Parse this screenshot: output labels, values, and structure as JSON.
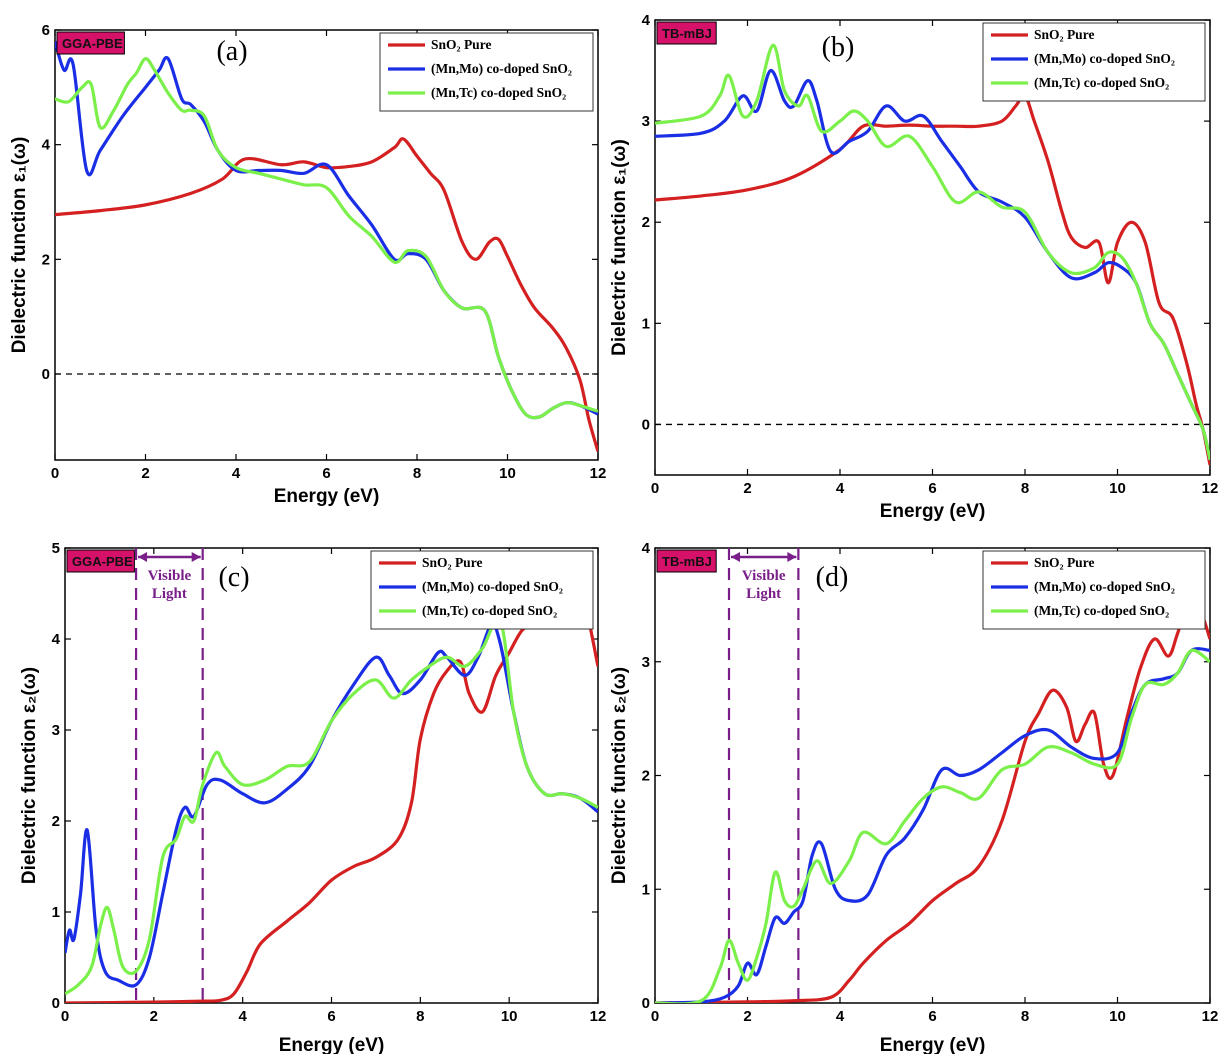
{
  "colors": {
    "pure": "#d42020",
    "mnmo": "#1a2ee6",
    "mntc": "#7cf04a",
    "method_tag": "#d6116a",
    "visible": "#7a1f8a"
  },
  "chart_data": [
    {
      "id": "a",
      "type": "line",
      "panel_label": "(a)",
      "method": "GGA-PBE",
      "xlabel": "Energy (eV)",
      "ylabel": "Dielectric function ε₁(ω)",
      "xlim": [
        0,
        12
      ],
      "ylim": [
        -1.5,
        6
      ],
      "xticks": [
        0,
        2,
        4,
        6,
        8,
        10,
        12
      ],
      "yticks": [
        0,
        2,
        4,
        6
      ],
      "zero_line": true,
      "legend": {
        "position": "top-right",
        "entries": [
          "SnO₂ Pure",
          "(Mn,Mo) co-doped SnO₂",
          "(Mn,Tc) co-doped SnO₂"
        ]
      },
      "series": [
        {
          "name": "SnO₂ Pure",
          "color_key": "pure",
          "x": [
            0,
            1,
            2,
            3,
            3.7,
            4.2,
            5,
            5.5,
            6,
            6.5,
            7,
            7.5,
            7.7,
            8,
            8.3,
            8.6,
            9,
            9.3,
            9.6,
            9.8,
            10,
            10.3,
            10.6,
            11,
            11.3,
            11.6,
            11.8,
            12
          ],
          "y": [
            2.78,
            2.85,
            2.95,
            3.15,
            3.4,
            3.75,
            3.65,
            3.7,
            3.6,
            3.62,
            3.7,
            3.95,
            4.1,
            3.8,
            3.5,
            3.2,
            2.3,
            2.0,
            2.3,
            2.35,
            2.05,
            1.55,
            1.15,
            0.8,
            0.45,
            -0.1,
            -0.8,
            -1.35
          ]
        },
        {
          "name": "(Mn,Mo) co-doped SnO₂",
          "color_key": "mnmo",
          "x": [
            0,
            0.2,
            0.4,
            0.7,
            1,
            1.5,
            2,
            2.3,
            2.5,
            2.8,
            3,
            3.3,
            3.6,
            4,
            4.5,
            5,
            5.5,
            6,
            6.5,
            7,
            7.5,
            7.8,
            8.2,
            8.6,
            9,
            9.5,
            9.8,
            10.1,
            10.4,
            10.7,
            11,
            11.3,
            11.6,
            12
          ],
          "y": [
            5.8,
            5.3,
            5.4,
            3.55,
            3.9,
            4.5,
            5.0,
            5.3,
            5.5,
            4.8,
            4.7,
            4.4,
            3.9,
            3.55,
            3.55,
            3.55,
            3.5,
            3.65,
            3.1,
            2.6,
            2.0,
            2.1,
            2.0,
            1.45,
            1.15,
            1.1,
            0.3,
            -0.3,
            -0.7,
            -0.75,
            -0.6,
            -0.5,
            -0.55,
            -0.7
          ]
        },
        {
          "name": "(Mn,Tc) co-doped SnO₂",
          "color_key": "mntc",
          "x": [
            0,
            0.3,
            0.6,
            0.8,
            1,
            1.3,
            1.6,
            1.8,
            2,
            2.2,
            2.5,
            2.8,
            3,
            3.3,
            3.6,
            4,
            4.5,
            5,
            5.5,
            6,
            6.5,
            7,
            7.5,
            7.8,
            8.2,
            8.6,
            9,
            9.5,
            9.8,
            10.1,
            10.4,
            10.7,
            11,
            11.3,
            11.6,
            12
          ],
          "y": [
            4.8,
            4.75,
            5.0,
            5.05,
            4.3,
            4.6,
            5.05,
            5.25,
            5.5,
            5.3,
            4.9,
            4.6,
            4.6,
            4.5,
            3.9,
            3.6,
            3.5,
            3.4,
            3.3,
            3.25,
            2.75,
            2.4,
            1.95,
            2.15,
            2.05,
            1.45,
            1.15,
            1.1,
            0.3,
            -0.3,
            -0.7,
            -0.75,
            -0.6,
            -0.5,
            -0.55,
            -0.65
          ]
        }
      ]
    },
    {
      "id": "b",
      "type": "line",
      "panel_label": "(b)",
      "method": "TB-mBJ",
      "xlabel": "Energy (eV)",
      "ylabel": "Dielectric function ε₁(ω)",
      "xlim": [
        0,
        12
      ],
      "ylim": [
        -0.5,
        4
      ],
      "xticks": [
        0,
        2,
        4,
        6,
        8,
        10,
        12
      ],
      "yticks": [
        0,
        1,
        2,
        3,
        4
      ],
      "zero_line": true,
      "legend": {
        "position": "top-right",
        "entries": [
          "SnO₂ Pure",
          "(Mn,Mo) co-doped SnO₂",
          "(Mn,Tc) co-doped SnO₂"
        ]
      },
      "series": [
        {
          "name": "SnO₂ Pure",
          "color_key": "pure",
          "x": [
            0,
            1,
            2,
            3,
            4,
            4.5,
            5,
            5.5,
            6,
            6.5,
            7,
            7.5,
            7.8,
            8,
            8.2,
            8.5,
            8.8,
            9,
            9.3,
            9.6,
            9.8,
            10,
            10.3,
            10.6,
            10.9,
            11.2,
            11.5,
            11.7,
            11.85,
            12
          ],
          "y": [
            2.22,
            2.26,
            2.32,
            2.45,
            2.72,
            2.95,
            2.95,
            2.96,
            2.95,
            2.95,
            2.95,
            3.0,
            3.15,
            3.25,
            3.0,
            2.6,
            2.1,
            1.85,
            1.75,
            1.8,
            1.4,
            1.8,
            2.0,
            1.8,
            1.2,
            1.05,
            0.6,
            0.2,
            -0.05,
            -0.4
          ]
        },
        {
          "name": "(Mn,Mo) co-doped SnO₂",
          "color_key": "mnmo",
          "x": [
            0,
            1,
            1.5,
            1.9,
            2.2,
            2.5,
            2.8,
            3,
            3.3,
            3.5,
            3.8,
            4.2,
            4.6,
            5,
            5.4,
            5.8,
            6.2,
            6.6,
            7,
            7.5,
            8,
            8.5,
            9,
            9.5,
            9.8,
            10.1,
            10.4,
            10.7,
            11,
            11.3,
            11.6,
            11.85,
            12
          ],
          "y": [
            2.85,
            2.88,
            3.0,
            3.25,
            3.1,
            3.5,
            3.2,
            3.15,
            3.4,
            3.2,
            2.7,
            2.8,
            2.9,
            3.15,
            3.0,
            3.05,
            2.8,
            2.55,
            2.3,
            2.2,
            2.05,
            1.7,
            1.45,
            1.5,
            1.6,
            1.55,
            1.4,
            1.0,
            0.8,
            0.5,
            0.2,
            -0.05,
            -0.35
          ]
        },
        {
          "name": "(Mn,Tc) co-doped SnO₂",
          "color_key": "mntc",
          "x": [
            0,
            1,
            1.4,
            1.6,
            1.9,
            2.2,
            2.55,
            2.8,
            3.1,
            3.3,
            3.6,
            4,
            4.3,
            4.6,
            5,
            5.5,
            6,
            6.5,
            7,
            7.5,
            8,
            8.5,
            9,
            9.5,
            9.8,
            10.1,
            10.4,
            10.7,
            11,
            11.3,
            11.6,
            11.85,
            12
          ],
          "y": [
            2.98,
            3.05,
            3.25,
            3.45,
            3.05,
            3.2,
            3.75,
            3.3,
            3.15,
            3.25,
            2.9,
            3.0,
            3.1,
            3.0,
            2.75,
            2.85,
            2.55,
            2.2,
            2.3,
            2.15,
            2.1,
            1.7,
            1.5,
            1.55,
            1.7,
            1.65,
            1.4,
            1.0,
            0.8,
            0.5,
            0.2,
            -0.05,
            -0.35
          ]
        }
      ]
    },
    {
      "id": "c",
      "type": "line",
      "panel_label": "(c)",
      "method": "GGA-PBE",
      "xlabel": "Energy (eV)",
      "ylabel": "Dielectric function ε₂(ω)",
      "xlim": [
        0,
        12
      ],
      "ylim": [
        0,
        5
      ],
      "xticks": [
        0,
        2,
        4,
        6,
        8,
        10,
        12
      ],
      "yticks": [
        0,
        1,
        2,
        3,
        4,
        5
      ],
      "visible_band": {
        "from": 1.6,
        "to": 3.1,
        "label_line1": "Visible",
        "label_line2": "Light"
      },
      "legend": {
        "position": "top-right",
        "entries": [
          "SnO₂ Pure",
          "(Mn,Mo) co-doped SnO₂",
          "(Mn,Tc) co-doped SnO₂"
        ]
      },
      "series": [
        {
          "name": "SnO₂ Pure",
          "color_key": "pure",
          "x": [
            0,
            2,
            3,
            3.5,
            3.8,
            4.1,
            4.4,
            5,
            5.5,
            6,
            6.5,
            7,
            7.5,
            7.8,
            8,
            8.3,
            8.6,
            8.9,
            9.1,
            9.4,
            9.7,
            10,
            10.3,
            10.6,
            11,
            11.3,
            11.5,
            11.7,
            12
          ],
          "y": [
            0,
            0.01,
            0.02,
            0.03,
            0.1,
            0.35,
            0.65,
            0.9,
            1.1,
            1.35,
            1.5,
            1.6,
            1.8,
            2.2,
            2.9,
            3.4,
            3.65,
            3.75,
            3.4,
            3.2,
            3.6,
            3.85,
            4.1,
            4.15,
            4.15,
            4.35,
            4.55,
            4.4,
            3.7
          ]
        },
        {
          "name": "(Mn,Mo) co-doped SnO₂",
          "color_key": "mnmo",
          "x": [
            0,
            0.1,
            0.2,
            0.35,
            0.5,
            0.7,
            0.9,
            1.2,
            1.6,
            1.9,
            2.2,
            2.5,
            2.7,
            2.9,
            3.2,
            3.5,
            4,
            4.5,
            5,
            5.5,
            6,
            6.5,
            7,
            7.3,
            7.6,
            8,
            8.4,
            8.6,
            9,
            9.3,
            9.6,
            9.8,
            10.1,
            10.4,
            10.8,
            11.2,
            11.6,
            12
          ],
          "y": [
            0.55,
            0.8,
            0.7,
            1.2,
            1.9,
            0.8,
            0.35,
            0.25,
            0.2,
            0.5,
            1.2,
            1.9,
            2.15,
            2.05,
            2.4,
            2.45,
            2.3,
            2.2,
            2.35,
            2.6,
            3.1,
            3.5,
            3.8,
            3.6,
            3.4,
            3.55,
            3.85,
            3.8,
            3.6,
            3.8,
            4.15,
            3.95,
            3.2,
            2.6,
            2.3,
            2.3,
            2.25,
            2.1
          ]
        },
        {
          "name": "(Mn,Tc) co-doped SnO₂",
          "color_key": "mntc",
          "x": [
            0,
            0.3,
            0.6,
            0.8,
            0.95,
            1.1,
            1.3,
            1.6,
            1.9,
            2.2,
            2.5,
            2.7,
            2.9,
            3.1,
            3.4,
            3.6,
            4,
            4.5,
            5,
            5.5,
            6,
            6.5,
            7,
            7.4,
            7.8,
            8.2,
            8.6,
            9,
            9.4,
            9.8,
            10.1,
            10.4,
            10.8,
            11.2,
            11.6,
            12
          ],
          "y": [
            0.1,
            0.2,
            0.4,
            0.85,
            1.05,
            0.8,
            0.4,
            0.35,
            0.7,
            1.6,
            1.8,
            2.05,
            2.0,
            2.4,
            2.75,
            2.6,
            2.4,
            2.45,
            2.6,
            2.65,
            3.1,
            3.4,
            3.55,
            3.35,
            3.55,
            3.7,
            3.8,
            3.7,
            3.9,
            4.2,
            3.2,
            2.6,
            2.3,
            2.3,
            2.25,
            2.15
          ]
        }
      ]
    },
    {
      "id": "d",
      "type": "line",
      "panel_label": "(d)",
      "method": "TB-mBJ",
      "xlabel": "Energy (eV)",
      "ylabel": "Dielectric function ε₂(ω)",
      "xlim": [
        0,
        12
      ],
      "ylim": [
        0,
        4
      ],
      "xticks": [
        0,
        2,
        4,
        6,
        8,
        10,
        12
      ],
      "yticks": [
        0,
        1,
        2,
        3,
        4
      ],
      "visible_band": {
        "from": 1.6,
        "to": 3.1,
        "label_line1": "Visible",
        "label_line2": "Light"
      },
      "legend": {
        "position": "top-right",
        "entries": [
          "SnO₂ Pure",
          "(Mn,Mo) co-doped SnO₂",
          "(Mn,Tc) co-doped SnO₂"
        ]
      },
      "series": [
        {
          "name": "SnO₂ Pure",
          "color_key": "pure",
          "x": [
            0,
            2,
            3,
            3.8,
            4.2,
            4.5,
            5,
            5.5,
            6,
            6.5,
            7,
            7.5,
            8,
            8.3,
            8.6,
            8.9,
            9.1,
            9.3,
            9.5,
            9.7,
            9.9,
            10.2,
            10.5,
            10.8,
            11.1,
            11.3,
            11.6,
            11.8,
            12
          ],
          "y": [
            0,
            0.01,
            0.02,
            0.05,
            0.2,
            0.35,
            0.55,
            0.7,
            0.9,
            1.05,
            1.2,
            1.6,
            2.3,
            2.55,
            2.75,
            2.6,
            2.3,
            2.45,
            2.55,
            2.1,
            2.0,
            2.5,
            2.95,
            3.2,
            3.05,
            3.25,
            3.6,
            3.45,
            3.2
          ]
        },
        {
          "name": "(Mn,Mo) co-doped SnO₂",
          "color_key": "mnmo",
          "x": [
            0,
            1,
            1.5,
            1.8,
            2.0,
            2.2,
            2.4,
            2.6,
            2.8,
            3.0,
            3.2,
            3.4,
            3.6,
            3.9,
            4.2,
            4.6,
            5,
            5.4,
            5.8,
            6.2,
            6.6,
            7,
            7.5,
            8,
            8.5,
            9,
            9.5,
            10,
            10.3,
            10.6,
            11,
            11.3,
            11.6,
            12
          ],
          "y": [
            0,
            0.01,
            0.05,
            0.15,
            0.35,
            0.25,
            0.5,
            0.75,
            0.7,
            0.8,
            0.9,
            1.3,
            1.4,
            1.0,
            0.9,
            0.95,
            1.3,
            1.45,
            1.7,
            2.05,
            2.0,
            2.05,
            2.2,
            2.35,
            2.4,
            2.25,
            2.15,
            2.2,
            2.55,
            2.8,
            2.85,
            2.9,
            3.1,
            3.1
          ]
        },
        {
          "name": "(Mn,Tc) co-doped SnO₂",
          "color_key": "mntc",
          "x": [
            0,
            1,
            1.4,
            1.6,
            1.8,
            2.0,
            2.2,
            2.4,
            2.6,
            2.8,
            3.0,
            3.2,
            3.5,
            3.8,
            4.2,
            4.5,
            5,
            5.4,
            5.8,
            6.2,
            6.6,
            7,
            7.5,
            8,
            8.5,
            9,
            9.5,
            10,
            10.3,
            10.6,
            11,
            11.3,
            11.6,
            12
          ],
          "y": [
            0,
            0.02,
            0.3,
            0.55,
            0.35,
            0.2,
            0.4,
            0.7,
            1.15,
            0.9,
            0.85,
            1.0,
            1.25,
            1.05,
            1.25,
            1.5,
            1.4,
            1.6,
            1.8,
            1.9,
            1.85,
            1.8,
            2.05,
            2.1,
            2.25,
            2.2,
            2.1,
            2.1,
            2.5,
            2.8,
            2.8,
            2.9,
            3.1,
            3.0
          ]
        }
      ]
    }
  ]
}
